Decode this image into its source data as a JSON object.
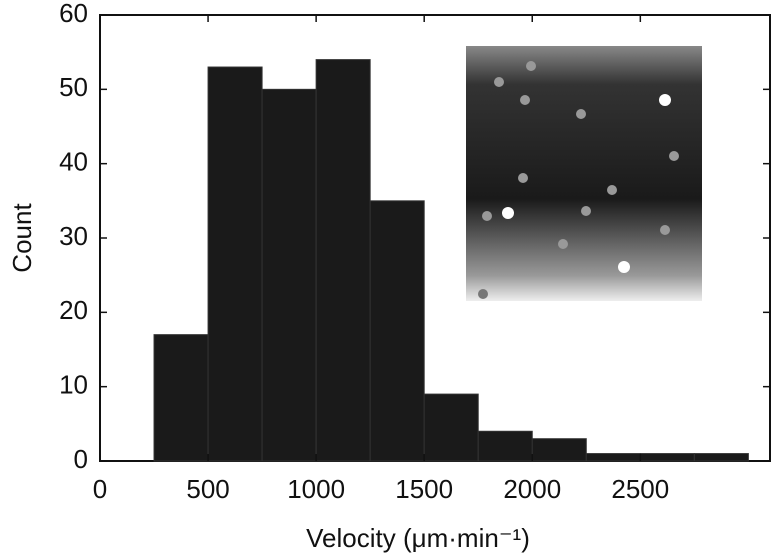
{
  "chart_data": {
    "type": "histogram",
    "x_label": "Velocity (μm·min⁻¹)",
    "y_label": "Count",
    "bins": [
      250,
      500,
      750,
      1000,
      1250,
      1500,
      1750,
      2000,
      2250,
      2500,
      2750,
      3000
    ],
    "values": [
      17,
      53,
      50,
      54,
      35,
      9,
      4,
      3,
      1,
      1,
      1
    ],
    "color": "#1a1a1a",
    "xlim": [
      0,
      3100
    ],
    "xticks": [
      0,
      500,
      1000,
      1500,
      2000,
      2500
    ],
    "ylim": [
      0,
      60
    ],
    "yticks": [
      0,
      10,
      20,
      30,
      40,
      50,
      60
    ]
  }
}
